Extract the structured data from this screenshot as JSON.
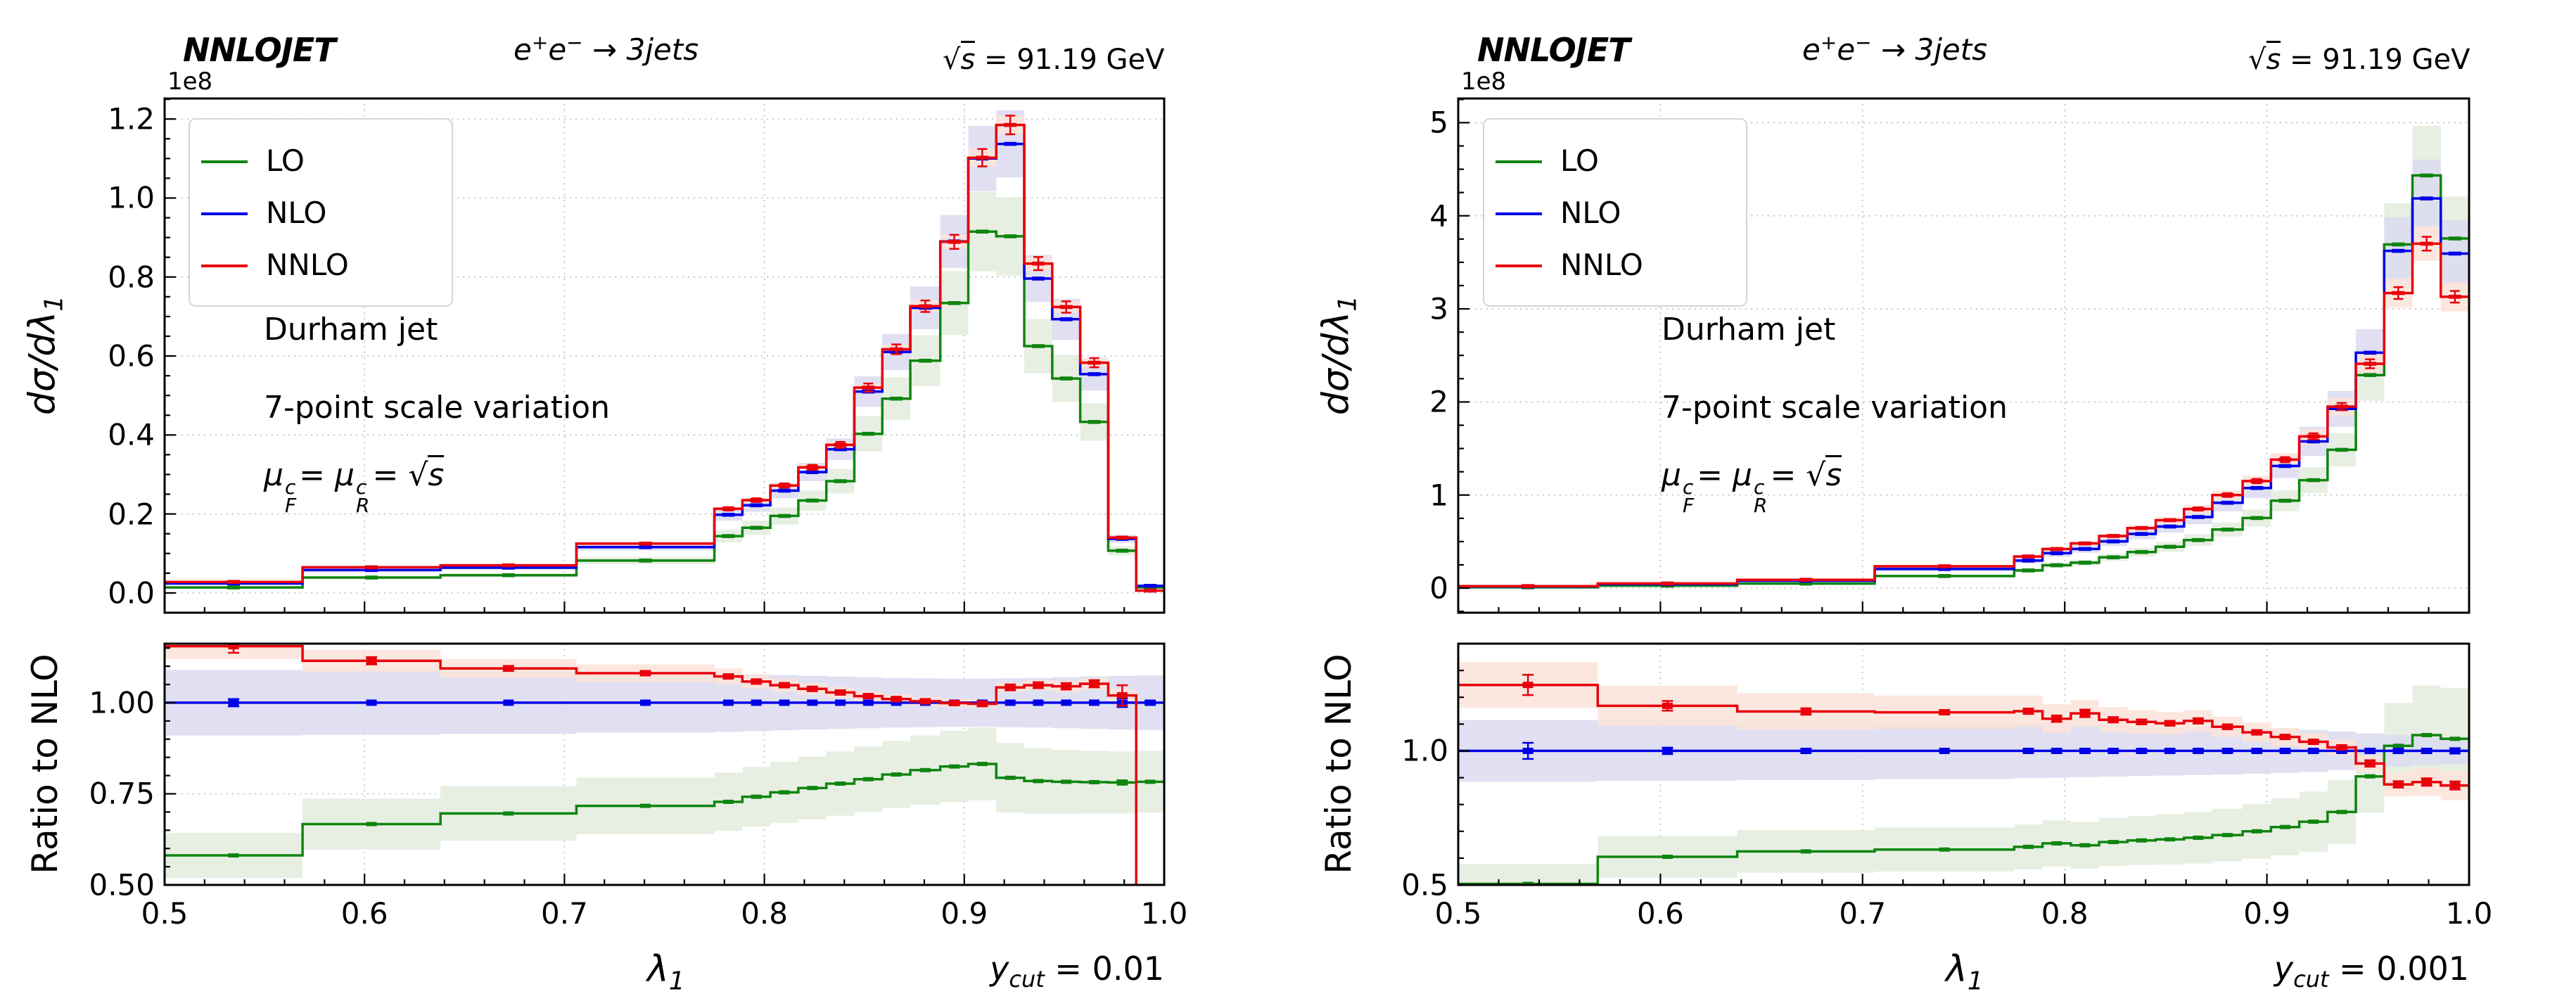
{
  "figure": {
    "background": "#ffffff",
    "frame_color": "#000000",
    "grid_color": "#c9c9c9"
  },
  "chart_data": [
    {
      "id": "ycut-0.01",
      "type": "bar",
      "subtype": "step-histogram-with-ratio",
      "header": {
        "brand": "NNLOJET",
        "process": {
          "e1": "e",
          "sup1": "+",
          "e2": "e",
          "sup2": "−",
          "arrow": " → ",
          "jets": "3jets"
        },
        "energy": {
          "sqrt": "√",
          "s": "s",
          "rest": " = 91.19 GeV"
        }
      },
      "annotations": {
        "line1": "Durham jet",
        "line2": "7-point scale variation",
        "mu": {
          "mu1": "μ",
          "sup1": "c",
          "sub1": "F",
          "eq1": "=",
          "mu2": "μ",
          "sup2": "c",
          "sub2": "R",
          "eq2": "=",
          "sqrt": "√",
          "s": "s"
        }
      },
      "corner_label": {
        "y": "y",
        "sub": "cut",
        "rest": " = 0.01"
      },
      "ylabel_main": {
        "main": "dσ/dλ",
        "sub": "1"
      },
      "offset_text": "1e8",
      "ylabel_ratio": "Ratio to NLO",
      "xlabel": {
        "main": "λ",
        "sub": "1"
      },
      "xlim": [
        0.5,
        1.0
      ],
      "xticks": [
        {
          "v": 0.5,
          "t": "0.5"
        },
        {
          "v": 0.6,
          "t": "0.6"
        },
        {
          "v": 0.7,
          "t": "0.7"
        },
        {
          "v": 0.8,
          "t": "0.8"
        },
        {
          "v": 0.9,
          "t": "0.9"
        },
        {
          "v": 1.0,
          "t": "1.0"
        }
      ],
      "bin_edges": [
        0.5,
        0.569,
        0.638,
        0.706,
        0.775,
        0.789,
        0.803,
        0.817,
        0.831,
        0.845,
        0.859,
        0.873,
        0.888,
        0.902,
        0.916,
        0.93,
        0.944,
        0.958,
        0.972,
        0.986,
        1.0
      ],
      "main": {
        "ylim": [
          -0.05,
          1.252
        ],
        "units": "1e8",
        "yticks": [
          {
            "v": 0.0,
            "t": "0.0"
          },
          {
            "v": 0.2,
            "t": "0.2"
          },
          {
            "v": 0.4,
            "t": "0.4"
          },
          {
            "v": 0.6,
            "t": "0.6"
          },
          {
            "v": 0.8,
            "t": "0.8"
          },
          {
            "v": 1.0,
            "t": "1.0"
          },
          {
            "v": 1.2,
            "t": "1.2"
          }
        ],
        "minor_step": 0.05
      },
      "ratio": {
        "ylim": [
          0.5,
          1.162
        ],
        "yticks": [
          {
            "v": 1.0,
            "t": "1.00"
          },
          {
            "v": 0.75,
            "t": "0.75"
          },
          {
            "v": 0.5,
            "t": "0.50"
          }
        ],
        "minor_step": 0.05
      },
      "series": [
        {
          "name": "LO",
          "color": "#0f8510",
          "band_color": "#e3ecdd",
          "band_frac": 0.11,
          "values": [
            0.014,
            0.039,
            0.045,
            0.082,
            0.144,
            0.165,
            0.195,
            0.234,
            0.283,
            0.403,
            0.492,
            0.588,
            0.734,
            0.915,
            0.903,
            0.625,
            0.543,
            0.433,
            0.107,
            0.014
          ],
          "ratio": [
            0.581,
            0.667,
            0.696,
            0.717,
            0.728,
            0.742,
            0.754,
            0.766,
            0.778,
            0.79,
            0.803,
            0.815,
            0.825,
            0.832,
            0.794,
            0.785,
            0.783,
            0.782,
            0.781,
            0.783
          ],
          "ratio_band": [
            0.062,
            0.07,
            0.075,
            0.078,
            0.08,
            0.082,
            0.084,
            0.086,
            0.088,
            0.09,
            0.092,
            0.095,
            0.098,
            0.1,
            0.095,
            0.09,
            0.088,
            0.086,
            0.085,
            0.085
          ],
          "ratio_err": [
            0.004,
            0.003,
            0.003,
            0.003,
            0.003,
            0.003,
            0.003,
            0.003,
            0.003,
            0.003,
            0.003,
            0.003,
            0.003,
            0.003,
            0.003,
            0.003,
            0.003,
            0.003,
            0.006,
            0.004
          ]
        },
        {
          "name": "NLO",
          "color": "#0000e8",
          "band_color": "#dbdbf0",
          "band_frac": 0.075,
          "values": [
            0.024,
            0.058,
            0.064,
            0.116,
            0.198,
            0.222,
            0.259,
            0.306,
            0.364,
            0.51,
            0.61,
            0.722,
            0.89,
            1.1,
            1.137,
            0.796,
            0.693,
            0.554,
            0.137,
            0.018
          ],
          "ratio": [
            1,
            1,
            1,
            1,
            1,
            1,
            1,
            1,
            1,
            1,
            1,
            1,
            1,
            1,
            1,
            1,
            1,
            1,
            1,
            1
          ],
          "ratio_band": [
            0.09,
            0.088,
            0.085,
            0.082,
            0.08,
            0.078,
            0.076,
            0.074,
            0.072,
            0.07,
            0.068,
            0.067,
            0.066,
            0.066,
            0.067,
            0.068,
            0.07,
            0.072,
            0.074,
            0.075
          ],
          "ratio_err": [
            0.01,
            0.004,
            0.003,
            0.003,
            0.003,
            0.003,
            0.003,
            0.003,
            0.003,
            0.003,
            0.003,
            0.003,
            0.003,
            0.003,
            0.003,
            0.003,
            0.004,
            0.004,
            0.012,
            0.006
          ]
        },
        {
          "name": "NNLO",
          "color": "#e8000b",
          "band_color": "#fbe3d9",
          "band_frac": 0.02,
          "values": [
            0.028,
            0.065,
            0.07,
            0.125,
            0.213,
            0.235,
            0.272,
            0.318,
            0.375,
            0.52,
            0.617,
            0.726,
            0.889,
            1.102,
            1.185,
            0.834,
            0.724,
            0.583,
            0.14,
            0.006
          ],
          "ratio": [
            1.155,
            1.115,
            1.094,
            1.081,
            1.072,
            1.058,
            1.048,
            1.038,
            1.028,
            1.018,
            1.01,
            1.004,
            0.999,
            0.997,
            1.042,
            1.048,
            1.045,
            1.052,
            1.02,
            0.3
          ],
          "ratio_band": [
            0.035,
            0.03,
            0.026,
            0.024,
            0.022,
            0.02,
            0.018,
            0.016,
            0.015,
            0.014,
            0.013,
            0.012,
            0.012,
            0.012,
            0.013,
            0.014,
            0.015,
            0.016,
            0.018,
            0.02
          ],
          "ratio_err": [
            0.018,
            0.01,
            0.007,
            0.005,
            0.006,
            0.006,
            0.006,
            0.006,
            0.006,
            0.006,
            0.006,
            0.006,
            0.006,
            0.007,
            0.008,
            0.008,
            0.009,
            0.01,
            0.028,
            0.01
          ]
        }
      ],
      "legend": [
        "LO",
        "NLO",
        "NNLO"
      ]
    },
    {
      "id": "ycut-0.001",
      "type": "bar",
      "subtype": "step-histogram-with-ratio",
      "header": {
        "brand": "NNLOJET",
        "process": {
          "e1": "e",
          "sup1": "+",
          "e2": "e",
          "sup2": "−",
          "arrow": " → ",
          "jets": "3jets"
        },
        "energy": {
          "sqrt": "√",
          "s": "s",
          "rest": " = 91.19 GeV"
        }
      },
      "annotations": {
        "line1": "Durham jet",
        "line2": "7-point scale variation",
        "mu": {
          "mu1": "μ",
          "sup1": "c",
          "sub1": "F",
          "eq1": "=",
          "mu2": "μ",
          "sup2": "c",
          "sub2": "R",
          "eq2": "=",
          "sqrt": "√",
          "s": "s"
        }
      },
      "corner_label": {
        "y": "y",
        "sub": "cut",
        "rest": " = 0.001"
      },
      "ylabel_main": {
        "main": "dσ/dλ",
        "sub": "1"
      },
      "offset_text": "1e8",
      "ylabel_ratio": "Ratio to NLO",
      "xlabel": {
        "main": "λ",
        "sub": "1"
      },
      "xlim": [
        0.5,
        1.0
      ],
      "xticks": [
        {
          "v": 0.5,
          "t": "0.5"
        },
        {
          "v": 0.6,
          "t": "0.6"
        },
        {
          "v": 0.7,
          "t": "0.7"
        },
        {
          "v": 0.8,
          "t": "0.8"
        },
        {
          "v": 0.9,
          "t": "0.9"
        },
        {
          "v": 1.0,
          "t": "1.0"
        }
      ],
      "bin_edges": [
        0.5,
        0.569,
        0.638,
        0.706,
        0.775,
        0.789,
        0.803,
        0.817,
        0.831,
        0.845,
        0.859,
        0.873,
        0.888,
        0.902,
        0.916,
        0.93,
        0.944,
        0.958,
        0.972,
        0.986,
        1.0
      ],
      "main": {
        "ylim": [
          -0.264,
          5.26
        ],
        "units": "1e8",
        "yticks": [
          {
            "v": 0,
            "t": "0"
          },
          {
            "v": 1,
            "t": "1"
          },
          {
            "v": 2,
            "t": "2"
          },
          {
            "v": 3,
            "t": "3"
          },
          {
            "v": 4,
            "t": "4"
          },
          {
            "v": 5,
            "t": "5"
          }
        ],
        "minor_step": 0.25
      },
      "ratio": {
        "ylim": [
          0.5,
          1.4
        ],
        "yticks": [
          {
            "v": 1.0,
            "t": "1.0"
          },
          {
            "v": 0.5,
            "t": "0.5"
          }
        ],
        "minor_step": 0.1
      },
      "series": [
        {
          "name": "LO",
          "color": "#0f8510",
          "band_color": "#e3ecdd",
          "band_frac": 0.12,
          "values": [
            0.009,
            0.026,
            0.049,
            0.13,
            0.19,
            0.246,
            0.273,
            0.331,
            0.388,
            0.444,
            0.516,
            0.629,
            0.753,
            0.939,
            1.16,
            1.486,
            2.289,
            3.692,
            4.433,
            3.756
          ],
          "ratio": [
            0.504,
            0.605,
            0.625,
            0.632,
            0.642,
            0.655,
            0.648,
            0.66,
            0.666,
            0.67,
            0.676,
            0.686,
            0.7,
            0.716,
            0.736,
            0.772,
            0.905,
            1.019,
            1.059,
            1.045
          ],
          "ratio_band": [
            0.075,
            0.078,
            0.08,
            0.082,
            0.084,
            0.086,
            0.088,
            0.09,
            0.092,
            0.094,
            0.096,
            0.098,
            0.102,
            0.106,
            0.112,
            0.12,
            0.135,
            0.16,
            0.185,
            0.19
          ],
          "ratio_err": [
            0.004,
            0.003,
            0.003,
            0.003,
            0.003,
            0.003,
            0.003,
            0.003,
            0.003,
            0.003,
            0.003,
            0.003,
            0.003,
            0.003,
            0.003,
            0.004,
            0.005,
            0.006,
            0.006,
            0.006
          ]
        },
        {
          "name": "NLO",
          "color": "#0000e8",
          "band_color": "#dbdbf0",
          "band_frac": 0.1,
          "values": [
            0.018,
            0.043,
            0.079,
            0.205,
            0.296,
            0.375,
            0.421,
            0.502,
            0.582,
            0.662,
            0.764,
            0.917,
            1.076,
            1.312,
            1.576,
            1.925,
            2.529,
            3.623,
            4.186,
            3.594
          ],
          "ratio": [
            1,
            1,
            1,
            1,
            1,
            1,
            1,
            1,
            1,
            1,
            1,
            1,
            1,
            1,
            1,
            1,
            1,
            1,
            1,
            1
          ],
          "ratio_band": [
            0.115,
            0.112,
            0.108,
            0.105,
            0.102,
            0.1,
            0.098,
            0.096,
            0.094,
            0.092,
            0.09,
            0.088,
            0.085,
            0.082,
            0.078,
            0.072,
            0.065,
            0.058,
            0.052,
            0.05
          ],
          "ratio_err": [
            0.03,
            0.012,
            0.008,
            0.006,
            0.008,
            0.008,
            0.008,
            0.007,
            0.007,
            0.007,
            0.007,
            0.007,
            0.007,
            0.007,
            0.007,
            0.007,
            0.008,
            0.008,
            0.008,
            0.01
          ]
        },
        {
          "name": "NNLO",
          "color": "#e8000b",
          "band_color": "#fbe3d9",
          "band_frac": 0.05,
          "values": [
            0.022,
            0.05,
            0.09,
            0.235,
            0.34,
            0.42,
            0.48,
            0.56,
            0.645,
            0.73,
            0.85,
            1.0,
            1.15,
            1.38,
            1.63,
            1.95,
            2.41,
            3.17,
            3.7,
            3.13
          ],
          "ratio": [
            1.246,
            1.168,
            1.147,
            1.144,
            1.148,
            1.12,
            1.14,
            1.116,
            1.108,
            1.103,
            1.112,
            1.09,
            1.069,
            1.052,
            1.034,
            1.013,
            0.953,
            0.875,
            0.884,
            0.871
          ],
          "ratio_band": [
            0.085,
            0.075,
            0.068,
            0.062,
            0.058,
            0.054,
            0.05,
            0.047,
            0.044,
            0.042,
            0.04,
            0.038,
            0.036,
            0.034,
            0.032,
            0.03,
            0.03,
            0.045,
            0.052,
            0.055
          ],
          "ratio_err": [
            0.038,
            0.018,
            0.012,
            0.008,
            0.01,
            0.012,
            0.014,
            0.01,
            0.009,
            0.009,
            0.01,
            0.009,
            0.008,
            0.008,
            0.008,
            0.008,
            0.012,
            0.012,
            0.014,
            0.015
          ]
        }
      ],
      "legend": [
        "LO",
        "NLO",
        "NNLO"
      ]
    }
  ]
}
